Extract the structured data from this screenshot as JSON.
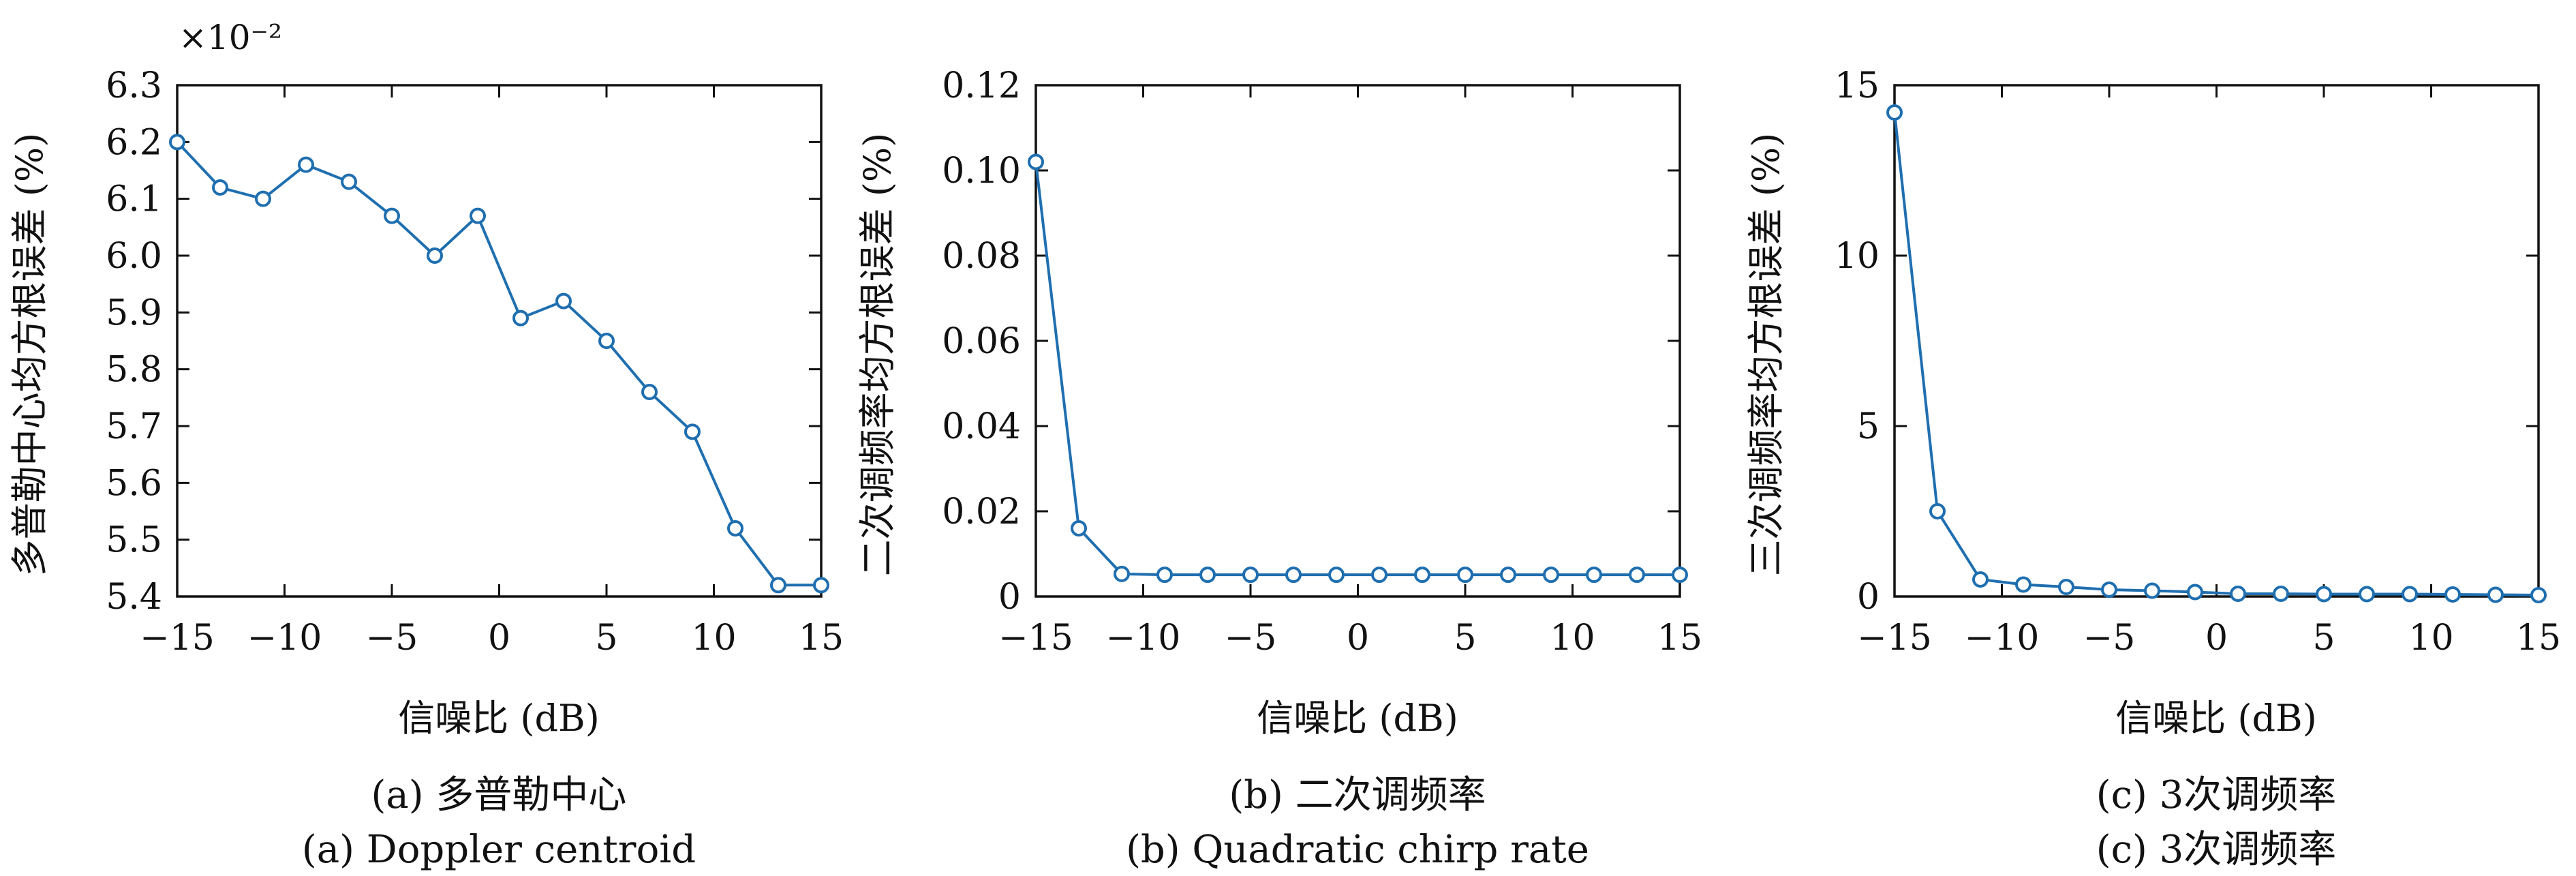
{
  "chart_data": [
    {
      "id": "a",
      "type": "line",
      "ylabel": "多普勒中心均方根误差 (%)",
      "xlabel": "信噪比 (dB)",
      "caption_cn": "(a) 多普勒中心",
      "caption_en": "(a) Doppler centroid",
      "y_multiplier": "×10⁻²",
      "xlim": [
        -15,
        15
      ],
      "ylim": [
        5.4,
        6.3
      ],
      "xticks": [
        -15,
        -10,
        -5,
        0,
        5,
        10,
        15
      ],
      "xtick_labels": [
        "−15",
        "−10",
        "−5",
        "0",
        "5",
        "10",
        "15"
      ],
      "yticks": [
        5.4,
        5.5,
        5.6,
        5.7,
        5.8,
        5.9,
        6.0,
        6.1,
        6.2,
        6.3
      ],
      "ytick_labels": [
        "5.4",
        "5.5",
        "5.6",
        "5.7",
        "5.8",
        "5.9",
        "6.0",
        "6.1",
        "6.2",
        "6.3"
      ],
      "grid": false,
      "color": "#1f6fb0",
      "x": [
        -15,
        -13,
        -11,
        -9,
        -7,
        -5,
        -3,
        -1,
        1,
        3,
        5,
        7,
        9,
        11,
        13,
        15
      ],
      "y": [
        6.2,
        6.12,
        6.1,
        6.16,
        6.13,
        6.07,
        6.0,
        6.07,
        5.89,
        5.92,
        5.85,
        5.76,
        5.69,
        5.52,
        5.42,
        5.42
      ]
    },
    {
      "id": "b",
      "type": "line",
      "ylabel": "二次调频率均方根误差 (%)",
      "xlabel": "信噪比 (dB)",
      "caption_cn": "(b) 二次调频率",
      "caption_en": "(b) Quadratic chirp rate",
      "xlim": [
        -15,
        15
      ],
      "ylim": [
        0,
        0.12
      ],
      "xticks": [
        -15,
        -10,
        -5,
        0,
        5,
        10,
        15
      ],
      "xtick_labels": [
        "−15",
        "−10",
        "−5",
        "0",
        "5",
        "10",
        "15"
      ],
      "yticks": [
        0,
        0.02,
        0.04,
        0.06,
        0.08,
        0.1,
        0.12
      ],
      "ytick_labels": [
        "0",
        "0.02",
        "0.04",
        "0.06",
        "0.08",
        "0.10",
        "0.12"
      ],
      "grid": false,
      "color": "#1f6fb0",
      "x": [
        -15,
        -13,
        -11,
        -9,
        -7,
        -5,
        -3,
        -1,
        1,
        3,
        5,
        7,
        9,
        11,
        13,
        15
      ],
      "y": [
        0.102,
        0.016,
        0.0053,
        0.0051,
        0.0051,
        0.0051,
        0.0051,
        0.0051,
        0.0051,
        0.0051,
        0.0051,
        0.0051,
        0.0051,
        0.0051,
        0.0051,
        0.0051
      ]
    },
    {
      "id": "c",
      "type": "line",
      "ylabel": "三次调频率均方根误差 (%)",
      "xlabel": "信噪比 (dB)",
      "caption_cn": "(c) 3次调频率",
      "caption_en": "(c) 3次调频率",
      "xlim": [
        -15,
        15
      ],
      "ylim": [
        0,
        15
      ],
      "xticks": [
        -15,
        -10,
        -5,
        0,
        5,
        10,
        15
      ],
      "xtick_labels": [
        "−15",
        "−10",
        "−5",
        "0",
        "5",
        "10",
        "15"
      ],
      "yticks": [
        0,
        5,
        10,
        15
      ],
      "ytick_labels": [
        "0",
        "5",
        "10",
        "15"
      ],
      "grid": false,
      "color": "#1f6fb0",
      "x": [
        -15,
        -13,
        -11,
        -9,
        -7,
        -5,
        -3,
        -1,
        1,
        3,
        5,
        7,
        9,
        11,
        13,
        15
      ],
      "y": [
        14.2,
        2.5,
        0.5,
        0.35,
        0.28,
        0.2,
        0.17,
        0.13,
        0.08,
        0.08,
        0.07,
        0.07,
        0.07,
        0.06,
        0.05,
        0.04
      ]
    }
  ]
}
